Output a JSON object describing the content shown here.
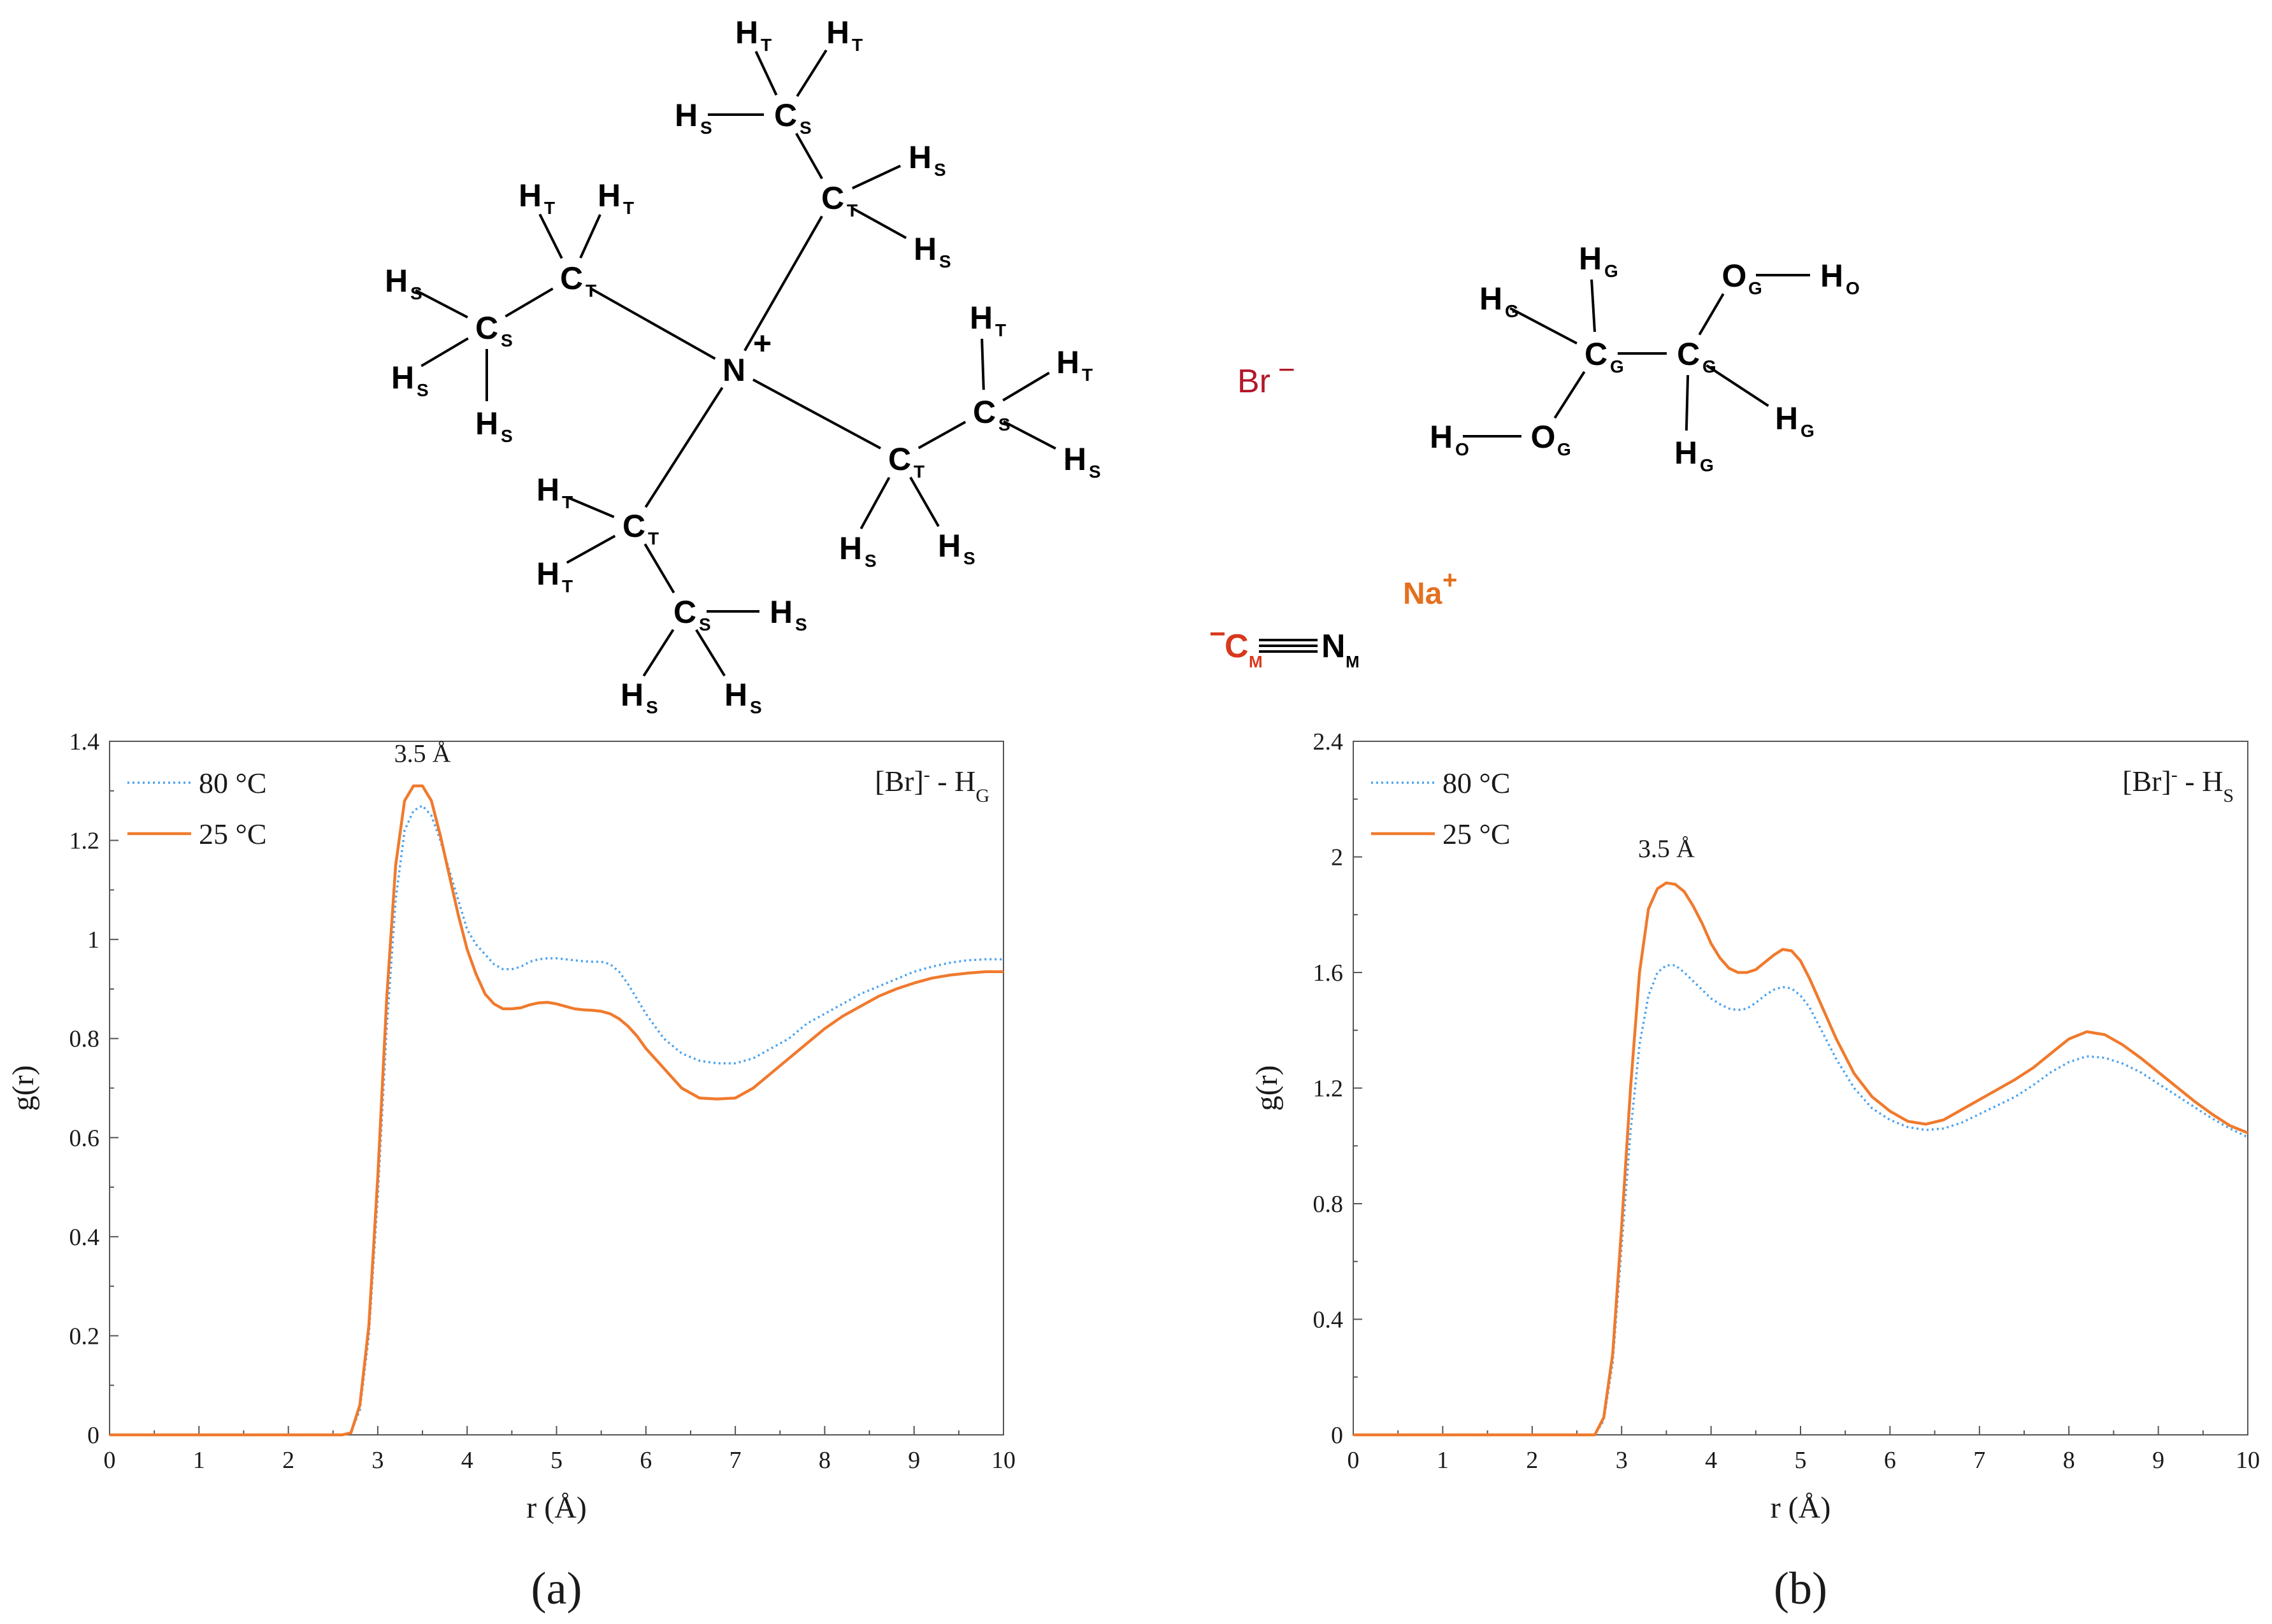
{
  "structures": {
    "cation": {
      "charge": "+",
      "atoms": [
        {
          "id": "N",
          "el": "N",
          "sub": "",
          "color": "#1a237e"
        },
        {
          "id": "CT1",
          "el": "C",
          "sub": "T"
        },
        {
          "id": "CS1",
          "el": "C",
          "sub": "S"
        },
        {
          "id": "H1a",
          "el": "H",
          "sub": "T"
        },
        {
          "id": "H1b",
          "el": "H",
          "sub": "T"
        },
        {
          "id": "H1c",
          "el": "H",
          "sub": "S"
        },
        {
          "id": "H1d",
          "el": "H",
          "sub": "S"
        },
        {
          "id": "H1e",
          "el": "H",
          "sub": "S"
        },
        {
          "id": "CT2",
          "el": "C",
          "sub": "T"
        },
        {
          "id": "CS2",
          "el": "C",
          "sub": "S"
        },
        {
          "id": "H2a",
          "el": "H",
          "sub": "T"
        },
        {
          "id": "H2b",
          "el": "H",
          "sub": "T"
        },
        {
          "id": "H2c",
          "el": "H",
          "sub": "S"
        },
        {
          "id": "H2d",
          "el": "H",
          "sub": "S"
        },
        {
          "id": "H2e",
          "el": "H",
          "sub": "S"
        },
        {
          "id": "CT3",
          "el": "C",
          "sub": "T"
        },
        {
          "id": "CS3",
          "el": "C",
          "sub": "S"
        },
        {
          "id": "H3a",
          "el": "H",
          "sub": "T"
        },
        {
          "id": "H3b",
          "el": "H",
          "sub": "T"
        },
        {
          "id": "H3c",
          "el": "H",
          "sub": "S"
        },
        {
          "id": "H3d",
          "el": "H",
          "sub": "S"
        },
        {
          "id": "H3e",
          "el": "H",
          "sub": "S"
        },
        {
          "id": "CT4",
          "el": "C",
          "sub": "T"
        },
        {
          "id": "CS4",
          "el": "C",
          "sub": "S"
        },
        {
          "id": "H4a",
          "el": "H",
          "sub": "T"
        },
        {
          "id": "H4b",
          "el": "H",
          "sub": "T"
        },
        {
          "id": "H4c",
          "el": "H",
          "sub": "S"
        },
        {
          "id": "H4d",
          "el": "H",
          "sub": "S"
        },
        {
          "id": "H4e",
          "el": "H",
          "sub": "S"
        }
      ]
    },
    "glycol": {
      "atoms": [
        {
          "id": "CG1",
          "el": "C",
          "sub": "G"
        },
        {
          "id": "CG2",
          "el": "C",
          "sub": "G"
        },
        {
          "id": "OG1",
          "el": "O",
          "sub": "G",
          "color": "#c0152a"
        },
        {
          "id": "OG2",
          "el": "O",
          "sub": "G",
          "color": "#c0152a"
        },
        {
          "id": "HO1",
          "el": "H",
          "sub": "O"
        },
        {
          "id": "HO2",
          "el": "H",
          "sub": "O"
        },
        {
          "id": "HG1",
          "el": "H",
          "sub": "G"
        },
        {
          "id": "HG2",
          "el": "H",
          "sub": "G"
        },
        {
          "id": "HG3",
          "el": "H",
          "sub": "G"
        },
        {
          "id": "HG4",
          "el": "H",
          "sub": "G"
        }
      ]
    },
    "bromide": {
      "label": "Br",
      "charge": "−",
      "color": "#b3172b"
    },
    "sodium": {
      "label": "Na",
      "charge": "+",
      "color": "#e4701e"
    },
    "cyanide": {
      "charge": "−",
      "c_label": "C",
      "c_sub": "M",
      "c_color": "#d8381e",
      "n_label": "N",
      "n_sub": "M"
    }
  },
  "chart_data": [
    {
      "panel_label": "(a)",
      "type": "line",
      "title_main": "[Br]",
      "title_sup": "-",
      "title_pair": " - H",
      "title_sub": "G",
      "xlabel": "r (Å)",
      "ylabel": "g(r)",
      "xlim": [
        0,
        10
      ],
      "ylim": [
        0,
        1.4
      ],
      "xticks": [
        0,
        1,
        2,
        3,
        4,
        5,
        6,
        7,
        8,
        9,
        10
      ],
      "yticks": [
        0,
        0.2,
        0.4,
        0.6,
        0.8,
        1,
        1.2,
        1.4
      ],
      "ytick_labels": [
        "0",
        "0.2",
        "0.4",
        "0.6",
        "0.8",
        "1",
        "1.2",
        "1.4"
      ],
      "legend_position": "top-left",
      "annotation": {
        "text": "3.5 Å",
        "x": 3.5,
        "y": 1.33
      },
      "series": [
        {
          "name": "80 °C",
          "color": "#4aa3ef",
          "dash": "dotted",
          "x": [
            0,
            2.6,
            2.7,
            2.8,
            2.9,
            3.0,
            3.1,
            3.2,
            3.3,
            3.4,
            3.5,
            3.6,
            3.7,
            3.8,
            3.9,
            4.0,
            4.1,
            4.2,
            4.3,
            4.4,
            4.5,
            4.6,
            4.7,
            4.8,
            4.9,
            5.0,
            5.1,
            5.2,
            5.3,
            5.4,
            5.5,
            5.6,
            5.7,
            5.8,
            5.9,
            6.0,
            6.2,
            6.4,
            6.6,
            6.8,
            7.0,
            7.2,
            7.4,
            7.6,
            7.8,
            8.0,
            8.2,
            8.4,
            8.6,
            8.8,
            9.0,
            9.2,
            9.4,
            9.6,
            9.8,
            10.0
          ],
          "y": [
            0,
            0,
            0.005,
            0.05,
            0.2,
            0.48,
            0.82,
            1.08,
            1.22,
            1.26,
            1.27,
            1.25,
            1.2,
            1.14,
            1.08,
            1.02,
            0.99,
            0.97,
            0.95,
            0.94,
            0.94,
            0.945,
            0.955,
            0.96,
            0.962,
            0.962,
            0.96,
            0.958,
            0.956,
            0.955,
            0.955,
            0.95,
            0.935,
            0.91,
            0.88,
            0.85,
            0.8,
            0.77,
            0.755,
            0.75,
            0.75,
            0.76,
            0.78,
            0.8,
            0.83,
            0.85,
            0.87,
            0.89,
            0.905,
            0.92,
            0.935,
            0.945,
            0.953,
            0.958,
            0.96,
            0.96
          ]
        },
        {
          "name": "25 °C",
          "color": "#f07a2d",
          "dash": "solid",
          "x": [
            0,
            2.6,
            2.7,
            2.8,
            2.9,
            3.0,
            3.1,
            3.2,
            3.3,
            3.4,
            3.5,
            3.6,
            3.7,
            3.8,
            3.9,
            4.0,
            4.1,
            4.2,
            4.3,
            4.4,
            4.5,
            4.6,
            4.7,
            4.8,
            4.9,
            5.0,
            5.1,
            5.2,
            5.3,
            5.4,
            5.5,
            5.6,
            5.7,
            5.8,
            5.9,
            6.0,
            6.2,
            6.4,
            6.6,
            6.8,
            7.0,
            7.2,
            7.4,
            7.6,
            7.8,
            8.0,
            8.2,
            8.4,
            8.6,
            8.8,
            9.0,
            9.2,
            9.4,
            9.6,
            9.8,
            10.0
          ],
          "y": [
            0,
            0,
            0.004,
            0.06,
            0.22,
            0.52,
            0.88,
            1.15,
            1.28,
            1.31,
            1.31,
            1.28,
            1.21,
            1.13,
            1.05,
            0.98,
            0.93,
            0.89,
            0.87,
            0.86,
            0.86,
            0.862,
            0.868,
            0.872,
            0.873,
            0.87,
            0.865,
            0.86,
            0.858,
            0.857,
            0.855,
            0.85,
            0.84,
            0.825,
            0.805,
            0.78,
            0.74,
            0.7,
            0.68,
            0.678,
            0.68,
            0.7,
            0.73,
            0.76,
            0.79,
            0.82,
            0.845,
            0.865,
            0.885,
            0.9,
            0.912,
            0.922,
            0.928,
            0.932,
            0.935,
            0.935
          ]
        }
      ]
    },
    {
      "panel_label": "(b)",
      "type": "line",
      "title_main": "[Br]",
      "title_sup": "-",
      "title_pair": " - H",
      "title_sub": "S",
      "xlabel": "r (Å)",
      "ylabel": "g(r)",
      "xlim": [
        0,
        10
      ],
      "ylim": [
        0,
        2.4
      ],
      "xticks": [
        0,
        1,
        2,
        3,
        4,
        5,
        6,
        7,
        8,
        9,
        10
      ],
      "yticks": [
        0,
        0.4,
        0.8,
        1.2,
        1.6,
        2,
        2.4
      ],
      "ytick_labels": [
        "0",
        "0.4",
        "0.8",
        "1.2",
        "1.6",
        "2",
        "2.4"
      ],
      "legend_position": "top-left",
      "annotation": {
        "text": "3.5 Å",
        "x": 3.5,
        "y": 1.95
      },
      "series": [
        {
          "name": "80 °C",
          "color": "#4aa3ef",
          "dash": "dotted",
          "x": [
            0,
            2.7,
            2.8,
            2.9,
            3.0,
            3.1,
            3.2,
            3.3,
            3.4,
            3.5,
            3.6,
            3.7,
            3.8,
            3.9,
            4.0,
            4.1,
            4.2,
            4.3,
            4.4,
            4.5,
            4.6,
            4.7,
            4.8,
            4.9,
            5.0,
            5.1,
            5.2,
            5.3,
            5.4,
            5.5,
            5.6,
            5.8,
            6.0,
            6.2,
            6.4,
            6.6,
            6.8,
            7.0,
            7.2,
            7.4,
            7.6,
            7.8,
            8.0,
            8.2,
            8.4,
            8.6,
            8.8,
            9.0,
            9.2,
            9.4,
            9.6,
            9.8,
            10.0
          ],
          "y": [
            0,
            0,
            0.05,
            0.25,
            0.65,
            1.05,
            1.35,
            1.52,
            1.6,
            1.625,
            1.625,
            1.6,
            1.57,
            1.54,
            1.51,
            1.49,
            1.475,
            1.47,
            1.475,
            1.495,
            1.52,
            1.54,
            1.55,
            1.545,
            1.52,
            1.48,
            1.42,
            1.36,
            1.3,
            1.25,
            1.2,
            1.13,
            1.09,
            1.065,
            1.055,
            1.06,
            1.08,
            1.11,
            1.14,
            1.17,
            1.21,
            1.255,
            1.29,
            1.31,
            1.305,
            1.285,
            1.255,
            1.215,
            1.175,
            1.135,
            1.095,
            1.06,
            1.03
          ]
        },
        {
          "name": "25 °C",
          "color": "#f07a2d",
          "dash": "solid",
          "x": [
            0,
            2.7,
            2.8,
            2.9,
            3.0,
            3.1,
            3.2,
            3.3,
            3.4,
            3.5,
            3.6,
            3.7,
            3.8,
            3.9,
            4.0,
            4.1,
            4.2,
            4.3,
            4.4,
            4.5,
            4.6,
            4.7,
            4.8,
            4.9,
            5.0,
            5.1,
            5.2,
            5.3,
            5.4,
            5.5,
            5.6,
            5.8,
            6.0,
            6.2,
            6.4,
            6.6,
            6.8,
            7.0,
            7.2,
            7.4,
            7.6,
            7.8,
            8.0,
            8.2,
            8.4,
            8.6,
            8.8,
            9.0,
            9.2,
            9.4,
            9.6,
            9.8,
            10.0
          ],
          "y": [
            0,
            0,
            0.06,
            0.28,
            0.72,
            1.2,
            1.6,
            1.82,
            1.89,
            1.91,
            1.905,
            1.88,
            1.83,
            1.77,
            1.7,
            1.65,
            1.615,
            1.6,
            1.6,
            1.61,
            1.635,
            1.66,
            1.68,
            1.675,
            1.64,
            1.58,
            1.51,
            1.44,
            1.37,
            1.31,
            1.25,
            1.17,
            1.12,
            1.085,
            1.075,
            1.09,
            1.125,
            1.16,
            1.195,
            1.23,
            1.27,
            1.32,
            1.37,
            1.395,
            1.385,
            1.35,
            1.305,
            1.255,
            1.205,
            1.155,
            1.11,
            1.07,
            1.045
          ]
        }
      ]
    }
  ]
}
